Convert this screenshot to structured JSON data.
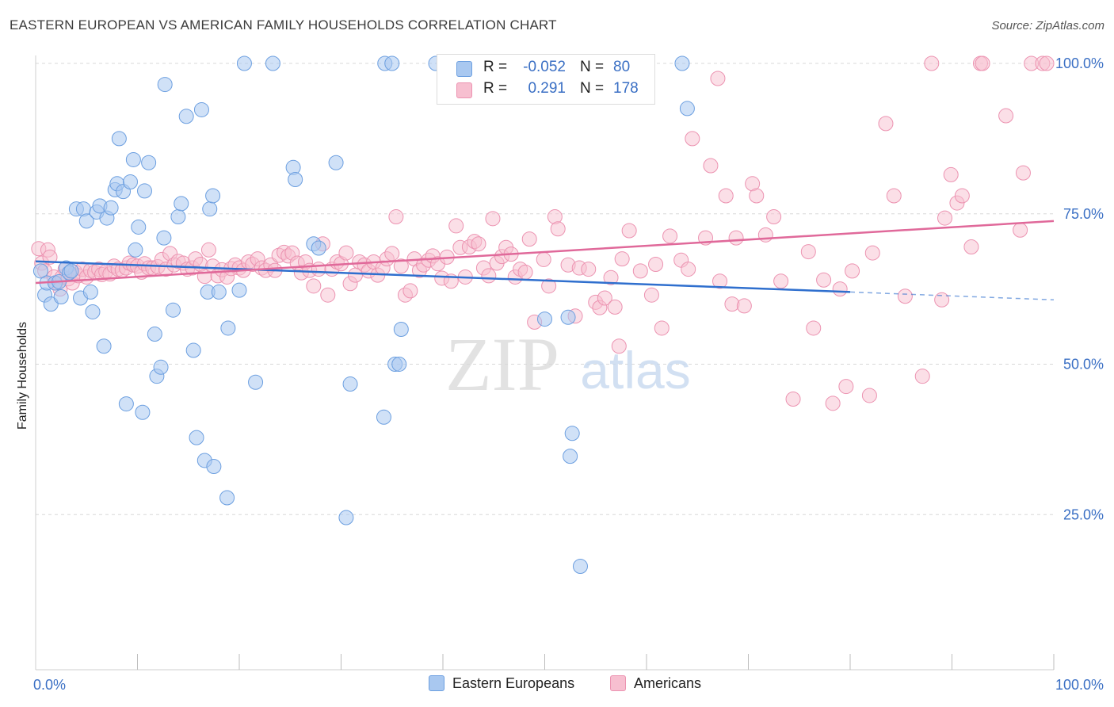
{
  "header": {
    "title": "EASTERN EUROPEAN VS AMERICAN FAMILY HOUSEHOLDS CORRELATION CHART",
    "source": "Source: ZipAtlas.com"
  },
  "watermark": {
    "zip": "ZIP",
    "atlas": "atlas"
  },
  "legend_top": {
    "rows": [
      {
        "r_label": "R =",
        "r_value": "-0.052",
        "n_label": "N =",
        "n_value": "80"
      },
      {
        "r_label": "R =",
        "r_value": "0.291",
        "n_label": "N =",
        "n_value": "178"
      }
    ]
  },
  "legend_bottom": {
    "items": [
      "Eastern Europeans",
      "Americans"
    ]
  },
  "colors": {
    "blue_fill": "#a9c8f0",
    "blue_stroke": "#6c9fe0",
    "blue_line": "#2f6fce",
    "pink_fill": "#f7bfd0",
    "pink_stroke": "#ec93b1",
    "pink_line": "#e0699a",
    "tick_text": "#3a6fc4",
    "grid": "#d8d8d8"
  },
  "chart_data": {
    "type": "scatter",
    "title": "EASTERN EUROPEAN VS AMERICAN FAMILY HOUSEHOLDS CORRELATION CHART",
    "xlabel": "",
    "ylabel": "Family Households",
    "xlim": [
      0,
      100
    ],
    "ylim": [
      0,
      102
    ],
    "x_tick_labels": [
      "0.0%",
      "100.0%"
    ],
    "y_ticks": [
      25,
      50,
      75,
      100
    ],
    "y_tick_labels": [
      "25.0%",
      "50.0%",
      "75.0%",
      "100.0%"
    ],
    "grid": true,
    "legend_position": "top-center",
    "series": [
      {
        "name": "Eastern Europeans",
        "color": "#a9c8f0",
        "trend": {
          "x0": 0,
          "y0": 67.1,
          "x1": 80,
          "y1": 62.0,
          "dashed_to_x": 100,
          "dashed_to_y": 60.7
        },
        "points": [
          [
            0.5,
            65.5
          ],
          [
            0.9,
            61.5
          ],
          [
            1.1,
            63.5
          ],
          [
            1.5,
            60.0
          ],
          [
            1.9,
            63.5
          ],
          [
            2.3,
            63.7
          ],
          [
            2.5,
            61.2
          ],
          [
            3.0,
            66.0
          ],
          [
            3.3,
            65.2
          ],
          [
            3.5,
            65.5
          ],
          [
            4.0,
            75.8
          ],
          [
            4.4,
            61.0
          ],
          [
            4.7,
            75.8
          ],
          [
            5.0,
            73.8
          ],
          [
            5.4,
            62.0
          ],
          [
            5.6,
            58.7
          ],
          [
            6.0,
            75.3
          ],
          [
            6.3,
            76.3
          ],
          [
            6.7,
            53.0
          ],
          [
            7.0,
            74.3
          ],
          [
            7.4,
            76.0
          ],
          [
            7.8,
            79.0
          ],
          [
            8.0,
            80.0
          ],
          [
            8.2,
            87.5
          ],
          [
            8.6,
            78.7
          ],
          [
            8.9,
            43.4
          ],
          [
            9.3,
            80.3
          ],
          [
            9.6,
            84.0
          ],
          [
            9.8,
            69.0
          ],
          [
            10.1,
            72.8
          ],
          [
            10.5,
            42.0
          ],
          [
            10.7,
            78.8
          ],
          [
            11.1,
            83.5
          ],
          [
            11.7,
            55.0
          ],
          [
            11.9,
            48.0
          ],
          [
            12.3,
            49.5
          ],
          [
            12.6,
            71.0
          ],
          [
            12.7,
            96.5
          ],
          [
            13.5,
            59.0
          ],
          [
            14.0,
            74.5
          ],
          [
            14.3,
            76.7
          ],
          [
            14.8,
            91.2
          ],
          [
            15.5,
            52.3
          ],
          [
            15.8,
            37.8
          ],
          [
            16.3,
            92.3
          ],
          [
            16.6,
            34.0
          ],
          [
            16.9,
            62.0
          ],
          [
            17.1,
            75.8
          ],
          [
            17.4,
            78.0
          ],
          [
            17.5,
            33.0
          ],
          [
            18.0,
            62.0
          ],
          [
            18.8,
            27.8
          ],
          [
            18.9,
            56.0
          ],
          [
            20.0,
            62.3
          ],
          [
            20.5,
            100
          ],
          [
            21.6,
            47.0
          ],
          [
            23.3,
            100
          ],
          [
            25.3,
            82.7
          ],
          [
            25.5,
            80.7
          ],
          [
            27.3,
            70.0
          ],
          [
            27.8,
            69.3
          ],
          [
            29.5,
            83.5
          ],
          [
            30.5,
            24.5
          ],
          [
            30.9,
            46.7
          ],
          [
            34.2,
            41.2
          ],
          [
            34.3,
            100
          ],
          [
            35.0,
            100
          ],
          [
            35.3,
            50.0
          ],
          [
            35.7,
            50.0
          ],
          [
            35.9,
            55.8
          ],
          [
            39.3,
            100
          ],
          [
            50.0,
            57.5
          ],
          [
            52.3,
            57.8
          ],
          [
            52.5,
            34.7
          ],
          [
            52.7,
            38.5
          ],
          [
            53.5,
            16.4
          ],
          [
            63.5,
            100
          ],
          [
            64.0,
            92.5
          ]
        ]
      },
      {
        "name": "Americans",
        "color": "#f7bfd0",
        "trend": {
          "x0": 0,
          "y0": 63.5,
          "x1": 100,
          "y1": 73.8
        },
        "points": [
          [
            0.3,
            69.2
          ],
          [
            0.6,
            66.8
          ],
          [
            0.9,
            65.5
          ],
          [
            1.2,
            69.0
          ],
          [
            1.4,
            67.8
          ],
          [
            1.8,
            64.5
          ],
          [
            2.0,
            63.5
          ],
          [
            2.4,
            62.5
          ],
          [
            2.6,
            64.5
          ],
          [
            2.9,
            65.8
          ],
          [
            3.2,
            64.2
          ],
          [
            3.6,
            63.5
          ],
          [
            3.9,
            65.3
          ],
          [
            4.2,
            64.7
          ],
          [
            4.6,
            65.8
          ],
          [
            5.0,
            64.5
          ],
          [
            5.4,
            65.6
          ],
          [
            5.8,
            65.3
          ],
          [
            6.2,
            65.8
          ],
          [
            6.5,
            64.9
          ],
          [
            6.9,
            65.4
          ],
          [
            7.3,
            65.0
          ],
          [
            7.7,
            66.3
          ],
          [
            8.1,
            65.8
          ],
          [
            8.5,
            65.6
          ],
          [
            8.9,
            66.0
          ],
          [
            9.2,
            66.8
          ],
          [
            9.6,
            66.5
          ],
          [
            10.0,
            66.3
          ],
          [
            10.4,
            65.3
          ],
          [
            10.7,
            66.7
          ],
          [
            11.1,
            66.0
          ],
          [
            11.5,
            66.0
          ],
          [
            12.0,
            66.2
          ],
          [
            12.4,
            67.4
          ],
          [
            12.8,
            65.8
          ],
          [
            13.2,
            68.4
          ],
          [
            13.6,
            66.5
          ],
          [
            14.0,
            67.1
          ],
          [
            14.5,
            66.8
          ],
          [
            14.9,
            65.8
          ],
          [
            15.4,
            66.0
          ],
          [
            15.7,
            67.5
          ],
          [
            16.2,
            66.6
          ],
          [
            16.6,
            64.6
          ],
          [
            17.0,
            69.0
          ],
          [
            17.4,
            66.3
          ],
          [
            17.9,
            64.7
          ],
          [
            18.3,
            65.7
          ],
          [
            18.8,
            64.5
          ],
          [
            19.2,
            65.9
          ],
          [
            19.6,
            66.5
          ],
          [
            20.0,
            66.0
          ],
          [
            20.4,
            65.6
          ],
          [
            20.9,
            67.0
          ],
          [
            21.3,
            66.6
          ],
          [
            21.8,
            67.5
          ],
          [
            22.2,
            66.0
          ],
          [
            22.6,
            65.6
          ],
          [
            23.1,
            66.5
          ],
          [
            23.5,
            65.6
          ],
          [
            23.9,
            68.1
          ],
          [
            24.4,
            68.6
          ],
          [
            24.8,
            68.0
          ],
          [
            25.2,
            68.5
          ],
          [
            25.7,
            66.8
          ],
          [
            26.1,
            65.2
          ],
          [
            26.5,
            67.0
          ],
          [
            26.9,
            65.6
          ],
          [
            27.3,
            63.0
          ],
          [
            27.8,
            65.8
          ],
          [
            28.2,
            70.0
          ],
          [
            28.7,
            61.5
          ],
          [
            29.1,
            65.8
          ],
          [
            29.6,
            67.0
          ],
          [
            30.0,
            66.7
          ],
          [
            30.5,
            68.5
          ],
          [
            30.9,
            63.4
          ],
          [
            31.4,
            64.8
          ],
          [
            31.8,
            67.0
          ],
          [
            32.3,
            66.5
          ],
          [
            32.7,
            65.5
          ],
          [
            33.2,
            67.0
          ],
          [
            33.6,
            64.8
          ],
          [
            34.1,
            66.0
          ],
          [
            34.5,
            67.5
          ],
          [
            35.0,
            68.4
          ],
          [
            35.4,
            74.5
          ],
          [
            35.9,
            66.3
          ],
          [
            36.3,
            61.5
          ],
          [
            36.8,
            62.2
          ],
          [
            37.2,
            67.5
          ],
          [
            37.7,
            65.6
          ],
          [
            38.1,
            66.5
          ],
          [
            38.6,
            67.3
          ],
          [
            39.0,
            68.0
          ],
          [
            39.5,
            66.7
          ],
          [
            39.9,
            64.3
          ],
          [
            40.4,
            67.8
          ],
          [
            40.8,
            63.8
          ],
          [
            41.3,
            73.0
          ],
          [
            41.7,
            69.4
          ],
          [
            42.2,
            64.5
          ],
          [
            42.6,
            69.5
          ],
          [
            43.1,
            70.4
          ],
          [
            43.5,
            70.0
          ],
          [
            44.0,
            66.0
          ],
          [
            44.5,
            64.7
          ],
          [
            44.9,
            74.2
          ],
          [
            45.3,
            66.8
          ],
          [
            45.8,
            67.9
          ],
          [
            46.2,
            69.4
          ],
          [
            46.7,
            68.3
          ],
          [
            47.1,
            64.5
          ],
          [
            47.6,
            65.8
          ],
          [
            48.1,
            65.3
          ],
          [
            48.5,
            70.8
          ],
          [
            49.0,
            57.0
          ],
          [
            49.9,
            67.4
          ],
          [
            50.4,
            63.0
          ],
          [
            51.0,
            74.5
          ],
          [
            51.3,
            72.5
          ],
          [
            52.3,
            66.5
          ],
          [
            53.0,
            58.0
          ],
          [
            53.4,
            66.0
          ],
          [
            54.3,
            65.8
          ],
          [
            55.0,
            60.3
          ],
          [
            55.4,
            59.4
          ],
          [
            55.9,
            61.0
          ],
          [
            56.5,
            64.4
          ],
          [
            56.9,
            59.5
          ],
          [
            57.3,
            53.0
          ],
          [
            57.6,
            67.5
          ],
          [
            58.3,
            72.2
          ],
          [
            59.4,
            65.5
          ],
          [
            60.5,
            61.5
          ],
          [
            60.9,
            66.6
          ],
          [
            61.5,
            56.0
          ],
          [
            62.3,
            71.3
          ],
          [
            63.4,
            67.3
          ],
          [
            64.1,
            65.8
          ],
          [
            64.5,
            87.5
          ],
          [
            65.8,
            71.0
          ],
          [
            66.3,
            83.0
          ],
          [
            67.0,
            97.5
          ],
          [
            67.2,
            63.8
          ],
          [
            67.8,
            78.0
          ],
          [
            68.4,
            60.0
          ],
          [
            68.8,
            71.0
          ],
          [
            69.6,
            59.7
          ],
          [
            70.4,
            80.0
          ],
          [
            70.8,
            78.0
          ],
          [
            71.7,
            71.5
          ],
          [
            72.5,
            74.5
          ],
          [
            73.2,
            63.8
          ],
          [
            74.4,
            44.2
          ],
          [
            75.9,
            68.7
          ],
          [
            76.4,
            56.0
          ],
          [
            77.4,
            64.0
          ],
          [
            78.3,
            43.5
          ],
          [
            79.0,
            62.5
          ],
          [
            79.6,
            46.3
          ],
          [
            80.2,
            65.5
          ],
          [
            81.9,
            44.8
          ],
          [
            82.2,
            68.5
          ],
          [
            83.5,
            90.0
          ],
          [
            84.3,
            78.0
          ],
          [
            85.4,
            61.3
          ],
          [
            87.1,
            48.0
          ],
          [
            88.0,
            100
          ],
          [
            89.0,
            60.7
          ],
          [
            89.3,
            74.3
          ],
          [
            89.9,
            81.5
          ],
          [
            90.5,
            76.8
          ],
          [
            91.0,
            78.0
          ],
          [
            91.9,
            69.5
          ],
          [
            92.8,
            100
          ],
          [
            93.0,
            100
          ],
          [
            95.3,
            91.3
          ],
          [
            96.7,
            72.3
          ],
          [
            97.0,
            81.8
          ],
          [
            97.8,
            100
          ],
          [
            98.9,
            100
          ],
          [
            99.3,
            100
          ]
        ]
      }
    ]
  }
}
